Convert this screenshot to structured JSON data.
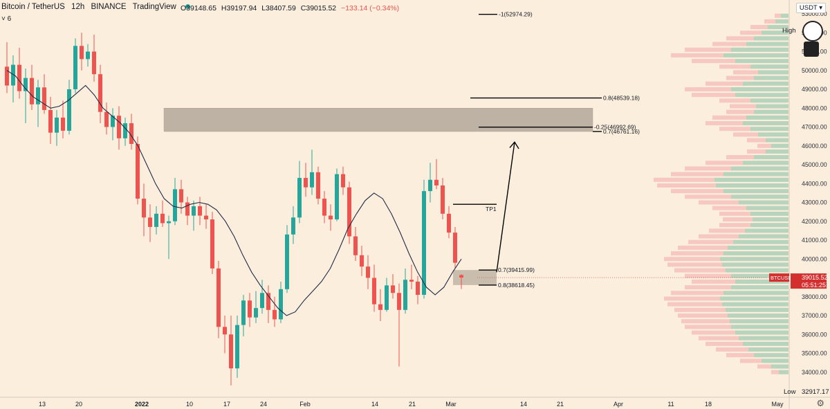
{
  "header": {
    "pair": "Bitcoin / TetherUS",
    "interval": "12h",
    "exchange": "BINANCE",
    "brand": "TradingView",
    "ohlc": {
      "open": "O39148.65",
      "high": "H39197.94",
      "low": "L38407.59",
      "close": "C39015.52",
      "change": "−133.14 (−0.34%)"
    },
    "indicator_toggle": "6"
  },
  "currency_button": "USDT",
  "high_label": "High",
  "low_label": "Low",
  "low_value": "32917.17",
  "ticker_label": "BTCUSDT",
  "price_tag": {
    "price": "39015.52",
    "countdown": "05:51:25"
  },
  "colors": {
    "up": "#26a69a",
    "down": "#ef5350",
    "zone": "#8c8275",
    "line": "#000000",
    "bg": "#fbeedd"
  },
  "chart_data": {
    "type": "candlestick",
    "y_axis": {
      "min": 33000,
      "max": 53000,
      "ticks": [
        "53000.00",
        "52000.00",
        "51000.00",
        "50000.00",
        "49000.00",
        "48000.00",
        "47000.00",
        "46000.00",
        "45000.00",
        "44000.00",
        "43000.00",
        "42000.00",
        "41000.00",
        "40000.00",
        "39000.00",
        "38000.00",
        "37000.00",
        "36000.00",
        "35000.00",
        "34000.00"
      ]
    },
    "x_axis_labels": [
      "13",
      "20",
      "2022",
      "10",
      "17",
      "24",
      "Feb",
      "14",
      "21",
      "Mar",
      "14",
      "21",
      "Apr",
      "11",
      "18",
      "May"
    ],
    "moving_average": [
      50000,
      49700,
      49100,
      48600,
      48300,
      48000,
      48100,
      48400,
      48800,
      49200,
      48700,
      48000,
      47600,
      47200,
      46700,
      46000,
      45000,
      44000,
      43200,
      42800,
      42700,
      42900,
      43000,
      42900,
      42600,
      42000,
      41200,
      40200,
      39300,
      38600,
      38000,
      37400,
      37000,
      37200,
      37800,
      38300,
      38800,
      39500,
      40500,
      41600,
      42400,
      43100,
      43500,
      43200,
      42400,
      41400,
      40300,
      39300,
      38500,
      38100,
      38500,
      39300,
      40000
    ],
    "candles": [
      {
        "o": 50200,
        "h": 51500,
        "l": 48800,
        "c": 49200
      },
      {
        "o": 49200,
        "h": 50800,
        "l": 48300,
        "c": 50300
      },
      {
        "o": 50300,
        "h": 51200,
        "l": 48500,
        "c": 48900
      },
      {
        "o": 48900,
        "h": 50100,
        "l": 47200,
        "c": 49600
      },
      {
        "o": 49600,
        "h": 50300,
        "l": 47900,
        "c": 48200
      },
      {
        "o": 48200,
        "h": 49500,
        "l": 47000,
        "c": 49100
      },
      {
        "o": 49100,
        "h": 49800,
        "l": 47700,
        "c": 47900
      },
      {
        "o": 47900,
        "h": 48600,
        "l": 46100,
        "c": 46700
      },
      {
        "o": 46700,
        "h": 47900,
        "l": 46000,
        "c": 47500
      },
      {
        "o": 47500,
        "h": 48400,
        "l": 46400,
        "c": 46800
      },
      {
        "o": 46800,
        "h": 49500,
        "l": 46600,
        "c": 49000
      },
      {
        "o": 49000,
        "h": 51700,
        "l": 48800,
        "c": 51300
      },
      {
        "o": 51300,
        "h": 52000,
        "l": 50000,
        "c": 50600
      },
      {
        "o": 50600,
        "h": 51400,
        "l": 50200,
        "c": 51000
      },
      {
        "o": 51000,
        "h": 51900,
        "l": 49400,
        "c": 49800
      },
      {
        "o": 49800,
        "h": 50300,
        "l": 47200,
        "c": 47800
      },
      {
        "o": 47800,
        "h": 48300,
        "l": 46600,
        "c": 47000
      },
      {
        "o": 47000,
        "h": 48000,
        "l": 46300,
        "c": 47600
      },
      {
        "o": 47600,
        "h": 48100,
        "l": 45800,
        "c": 46400
      },
      {
        "o": 46400,
        "h": 47500,
        "l": 46000,
        "c": 47200
      },
      {
        "o": 47200,
        "h": 47700,
        "l": 45800,
        "c": 46100
      },
      {
        "o": 46100,
        "h": 46500,
        "l": 42900,
        "c": 43200
      },
      {
        "o": 43200,
        "h": 44000,
        "l": 41200,
        "c": 42200
      },
      {
        "o": 42200,
        "h": 42900,
        "l": 40900,
        "c": 41700
      },
      {
        "o": 41700,
        "h": 42800,
        "l": 41300,
        "c": 42400
      },
      {
        "o": 42400,
        "h": 43100,
        "l": 41700,
        "c": 41900
      },
      {
        "o": 41900,
        "h": 42300,
        "l": 40000,
        "c": 42000
      },
      {
        "o": 42000,
        "h": 44300,
        "l": 41800,
        "c": 43700
      },
      {
        "o": 43700,
        "h": 44200,
        "l": 42400,
        "c": 43000
      },
      {
        "o": 43000,
        "h": 43300,
        "l": 41800,
        "c": 42300
      },
      {
        "o": 42300,
        "h": 43100,
        "l": 41500,
        "c": 42800
      },
      {
        "o": 42800,
        "h": 43300,
        "l": 41800,
        "c": 42300
      },
      {
        "o": 42300,
        "h": 42900,
        "l": 41600,
        "c": 42100
      },
      {
        "o": 42100,
        "h": 42500,
        "l": 39200,
        "c": 39500
      },
      {
        "o": 39500,
        "h": 39900,
        "l": 35800,
        "c": 36400
      },
      {
        "o": 36400,
        "h": 37000,
        "l": 35000,
        "c": 36000
      },
      {
        "o": 36000,
        "h": 37000,
        "l": 33300,
        "c": 34200
      },
      {
        "o": 34200,
        "h": 37000,
        "l": 33700,
        "c": 36500
      },
      {
        "o": 36500,
        "h": 38100,
        "l": 35900,
        "c": 37800
      },
      {
        "o": 37800,
        "h": 38200,
        "l": 36400,
        "c": 36900
      },
      {
        "o": 36900,
        "h": 38300,
        "l": 36600,
        "c": 37400
      },
      {
        "o": 37400,
        "h": 38900,
        "l": 37100,
        "c": 38200
      },
      {
        "o": 38200,
        "h": 38600,
        "l": 36600,
        "c": 37300
      },
      {
        "o": 37300,
        "h": 38000,
        "l": 36400,
        "c": 36800
      },
      {
        "o": 36800,
        "h": 38800,
        "l": 36600,
        "c": 38400
      },
      {
        "o": 38400,
        "h": 41800,
        "l": 38200,
        "c": 41300
      },
      {
        "o": 41300,
        "h": 42800,
        "l": 40800,
        "c": 42200
      },
      {
        "o": 42200,
        "h": 45200,
        "l": 41900,
        "c": 44300
      },
      {
        "o": 44300,
        "h": 45100,
        "l": 43300,
        "c": 43800
      },
      {
        "o": 43800,
        "h": 45800,
        "l": 43400,
        "c": 44600
      },
      {
        "o": 44600,
        "h": 44900,
        "l": 42900,
        "c": 43200
      },
      {
        "o": 43200,
        "h": 43600,
        "l": 41900,
        "c": 42300
      },
      {
        "o": 42300,
        "h": 42900,
        "l": 41500,
        "c": 42100
      },
      {
        "o": 42100,
        "h": 44800,
        "l": 42000,
        "c": 44500
      },
      {
        "o": 44500,
        "h": 44900,
        "l": 43400,
        "c": 43800
      },
      {
        "o": 43800,
        "h": 44100,
        "l": 40800,
        "c": 41200
      },
      {
        "o": 41200,
        "h": 41700,
        "l": 39900,
        "c": 40200
      },
      {
        "o": 40200,
        "h": 40700,
        "l": 39100,
        "c": 39600
      },
      {
        "o": 39600,
        "h": 40200,
        "l": 38400,
        "c": 39000
      },
      {
        "o": 39000,
        "h": 39700,
        "l": 37200,
        "c": 37600
      },
      {
        "o": 37600,
        "h": 38400,
        "l": 36700,
        "c": 37300
      },
      {
        "o": 37300,
        "h": 39000,
        "l": 37200,
        "c": 38600
      },
      {
        "o": 38600,
        "h": 39200,
        "l": 37900,
        "c": 38200
      },
      {
        "o": 38200,
        "h": 38700,
        "l": 34300,
        "c": 37300
      },
      {
        "o": 37300,
        "h": 39500,
        "l": 37100,
        "c": 38900
      },
      {
        "o": 38900,
        "h": 39700,
        "l": 38400,
        "c": 38800
      },
      {
        "o": 38800,
        "h": 39100,
        "l": 37600,
        "c": 38100
      },
      {
        "o": 38100,
        "h": 44200,
        "l": 37900,
        "c": 43600
      },
      {
        "o": 43600,
        "h": 45100,
        "l": 43000,
        "c": 44200
      },
      {
        "o": 44200,
        "h": 45300,
        "l": 43700,
        "c": 43900
      },
      {
        "o": 43900,
        "h": 44300,
        "l": 42100,
        "c": 42400
      },
      {
        "o": 42400,
        "h": 42800,
        "l": 41100,
        "c": 41400
      },
      {
        "o": 41400,
        "h": 41700,
        "l": 39500,
        "c": 39800
      },
      {
        "o": 39148,
        "h": 39198,
        "l": 38408,
        "c": 39016
      }
    ],
    "annotations": {
      "levels": [
        {
          "label": "-1(52974.29)",
          "price": 52974.29
        },
        {
          "label": "0.8(48539.18)",
          "price": 48539.18
        },
        {
          "label": "-0.25(46992.69)",
          "price": 46992.69
        },
        {
          "label": "0.7(46761.16)",
          "price": 46761.16
        },
        {
          "label": "0.7(39415.99)",
          "price": 39415.99
        },
        {
          "label": "0.8(38618.45)",
          "price": 38618.45
        }
      ],
      "tp_label": "TP1",
      "tp_price": 42900,
      "resistance_zone": {
        "from": 46761.16,
        "to": 48000
      },
      "entry_zone": {
        "from": 38618.45,
        "to": 39415.99
      }
    }
  }
}
